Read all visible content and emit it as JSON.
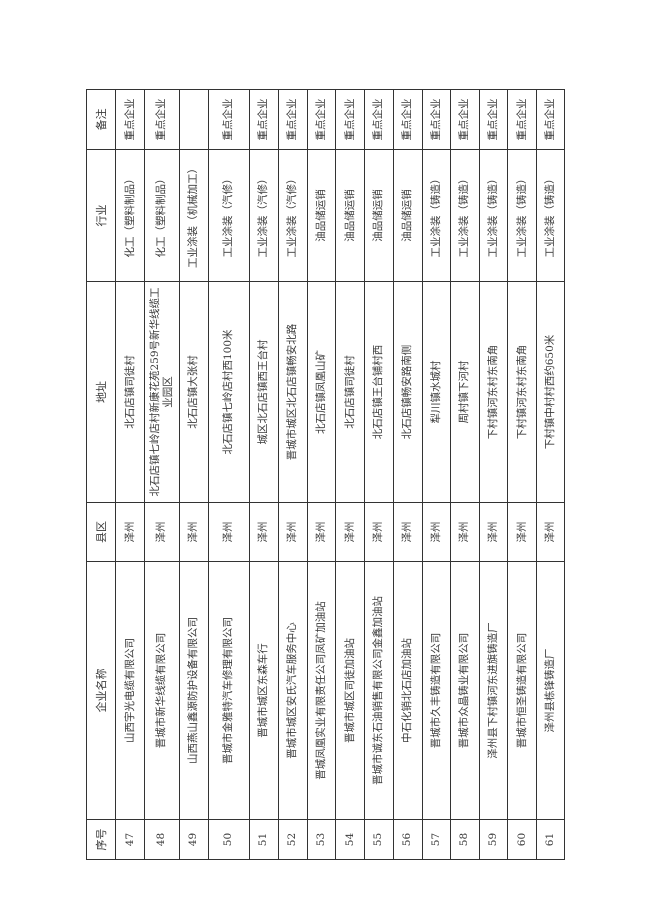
{
  "table": {
    "headers": [
      "序号",
      "企业名称",
      "县区",
      "地址",
      "行业",
      "备注"
    ],
    "rows": [
      [
        "47",
        "山西宇光电缆有限公司",
        "泽州",
        "北石店镇司徒村",
        "化工（塑料制品）",
        "重点企业"
      ],
      [
        "48",
        "晋城市新华线缆有限公司",
        "泽州",
        "北石店镇七岭店村新康花苑259号新华线缆工业园区",
        "化工（塑料制品）",
        "重点企业"
      ],
      [
        "49",
        "山西燕山鑫源防护设备有限公司",
        "泽州",
        "北石店镇大张村",
        "工业涂装（机械加工）",
        ""
      ],
      [
        "50",
        "晋城市金雅特汽车修理有限公司",
        "泽州",
        "北石店镇七岭店村西100米",
        "工业涂装（汽修）",
        "重点企业"
      ],
      [
        "51",
        "晋城市城区东森车行",
        "泽州",
        "城区北石店镇西王台村",
        "工业涂装（汽修）",
        "重点企业"
      ],
      [
        "52",
        "晋城市城区安氏汽车服务中心",
        "泽州",
        "晋城市城区北石店镇畅安北路",
        "工业涂装（汽修）",
        "重点企业"
      ],
      [
        "53",
        "晋城凤凰实业有限责任公司凤矿加油站",
        "泽州",
        "北石店镇凤凰山矿",
        "油品储运销",
        "重点企业"
      ],
      [
        "54",
        "晋城市城区司徒加油站",
        "泽州",
        "北石店镇司徒村",
        "油品储运销",
        "重点企业"
      ],
      [
        "55",
        "晋城市诚东石油销售有限公司金鑫加油站",
        "泽州",
        "北石店镇王台铺村西",
        "油品储运销",
        "重点企业"
      ],
      [
        "56",
        "中石化销北石店加油站",
        "泽州",
        "北石店镇畅安路南侧",
        "油品储运销",
        "重点企业"
      ],
      [
        "57",
        "晋城市久丰铸造有限公司",
        "泽州",
        "犁川镇水城村",
        "工业涂装（铸造）",
        "重点企业"
      ],
      [
        "58",
        "晋城市众晶铸业有限公司",
        "泽州",
        "周村镇下河村",
        "工业涂装（铸造）",
        "重点企业"
      ],
      [
        "59",
        "泽州县下村镇河东进旗铸造厂",
        "泽州",
        "下村镇河东村东南角",
        "工业涂装（铸造）",
        "重点企业"
      ],
      [
        "60",
        "晋城市恒圣铸造有限公司",
        "泽州",
        "下村镇河东村东南角",
        "工业涂装（铸造）",
        "重点企业"
      ],
      [
        "61",
        "泽州县栋锋铸造厂",
        "泽州",
        "下村镇中村村西约650米",
        "工业涂装（铸造）",
        "重点企业"
      ]
    ]
  }
}
